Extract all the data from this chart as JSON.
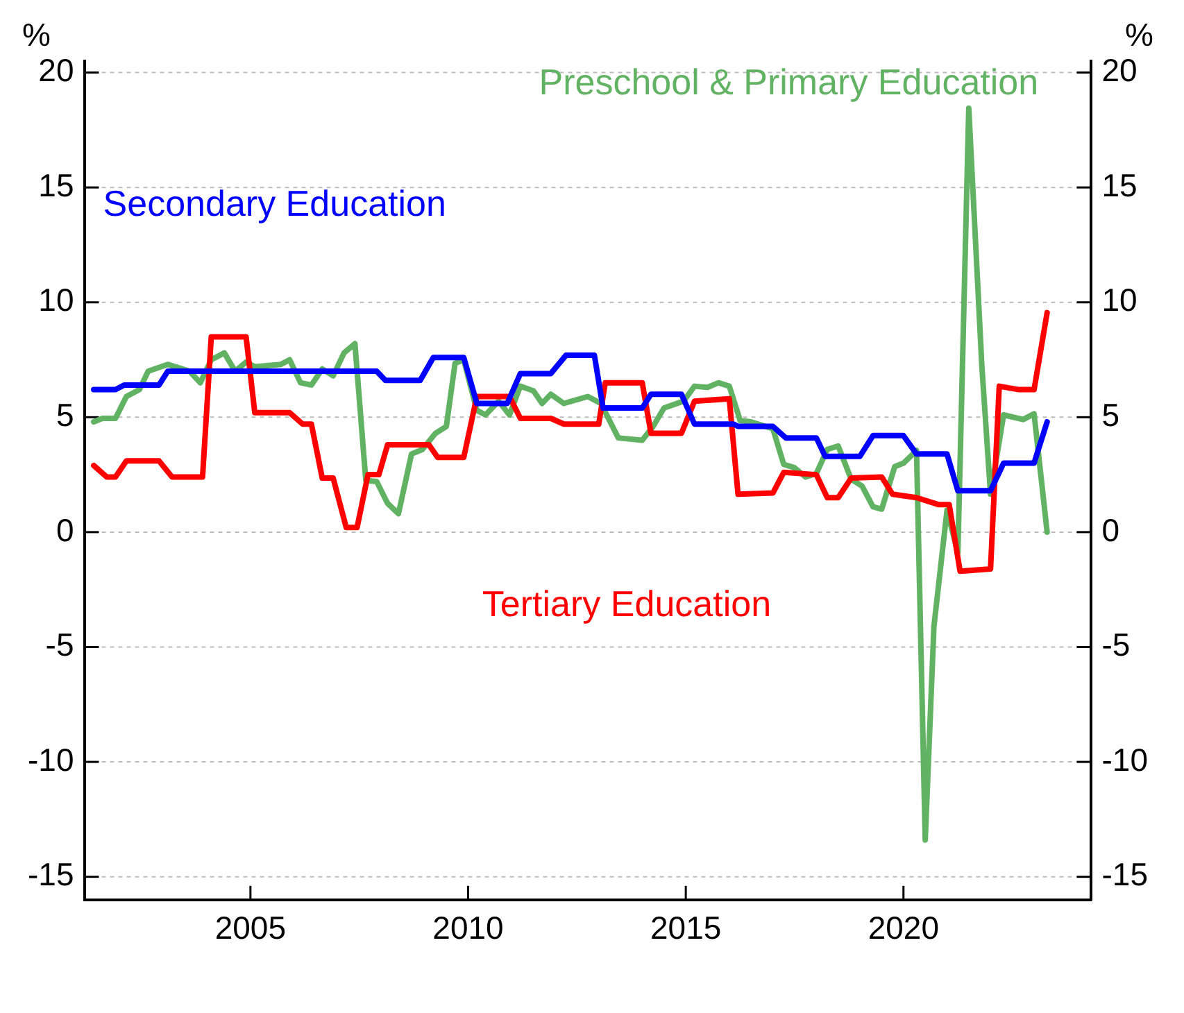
{
  "chart_data": {
    "type": "line",
    "ylabel": "%",
    "y2label": "%",
    "xlim": [
      2001.2,
      2024.3
    ],
    "xticks": [
      2005,
      2010,
      2015,
      2020
    ],
    "ylim": [
      -16,
      20.5
    ],
    "yticks": [
      -15,
      -10,
      -5,
      0,
      5,
      10,
      15,
      20
    ],
    "y2lim": [
      -16,
      20.5
    ],
    "y2ticks": [
      -15,
      -10,
      -5,
      0,
      5,
      10,
      15,
      20
    ],
    "grid": "y",
    "legend": false,
    "line_style": "solid",
    "marker": "none",
    "series": [
      {
        "name": "Secondary Education",
        "color": "#0000ff",
        "x": [
          2001.4,
          2001.9,
          2002.1,
          2002.9,
          2003.1,
          2007.9,
          2008.1,
          2008.9,
          2009.2,
          2009.9,
          2010.2,
          2010.9,
          2011.2,
          2011.9,
          2012.25,
          2012.9,
          2013.1,
          2014.0,
          2014.2,
          2014.9,
          2015.2,
          2016.1,
          2016.2,
          2017.0,
          2017.3,
          2018.0,
          2018.2,
          2019.0,
          2019.3,
          2020.0,
          2020.3,
          2021.0,
          2021.25,
          2022.0,
          2022.3,
          2023.0,
          2023.3
        ],
        "values": [
          6.2,
          6.2,
          6.4,
          6.4,
          7.0,
          7.0,
          6.6,
          6.6,
          7.6,
          7.6,
          5.6,
          5.6,
          6.9,
          6.9,
          7.7,
          7.7,
          5.4,
          5.4,
          6.0,
          6.0,
          4.7,
          4.7,
          4.6,
          4.6,
          4.1,
          4.1,
          3.3,
          3.3,
          4.2,
          4.2,
          3.4,
          3.4,
          1.8,
          1.8,
          3.0,
          3.0,
          4.8
        ]
      },
      {
        "name": "Tertiary Education",
        "color": "#ff0000",
        "x": [
          2001.4,
          2001.7,
          2001.9,
          2002.15,
          2002.9,
          2003.2,
          2003.9,
          2004.1,
          2004.9,
          2005.1,
          2005.9,
          2006.2,
          2006.4,
          2006.65,
          2006.9,
          2007.2,
          2007.45,
          2007.7,
          2007.95,
          2008.15,
          2009.1,
          2009.3,
          2009.9,
          2010.2,
          2010.95,
          2011.2,
          2011.9,
          2012.2,
          2013.0,
          2013.15,
          2014.0,
          2014.2,
          2014.9,
          2015.2,
          2016.0,
          2016.2,
          2017.0,
          2017.25,
          2018.0,
          2018.25,
          2018.5,
          2018.8,
          2019.5,
          2019.75,
          2020.3,
          2020.8,
          2021.05,
          2021.3,
          2022.0,
          2022.2,
          2022.65,
          2023.0,
          2023.3
        ],
        "values": [
          2.9,
          2.4,
          2.4,
          3.1,
          3.1,
          2.4,
          2.4,
          8.5,
          8.5,
          5.2,
          5.2,
          4.7,
          4.7,
          2.35,
          2.35,
          0.2,
          0.2,
          2.5,
          2.5,
          3.8,
          3.8,
          3.25,
          3.25,
          5.9,
          5.9,
          4.95,
          4.95,
          4.7,
          4.7,
          6.5,
          6.5,
          4.3,
          4.3,
          5.7,
          5.8,
          1.65,
          1.7,
          2.6,
          2.5,
          1.5,
          1.5,
          2.35,
          2.4,
          1.65,
          1.5,
          1.2,
          1.2,
          -1.7,
          -1.6,
          6.35,
          6.2,
          6.2,
          9.55
        ]
      },
      {
        "name": "Preschool & Primary Education",
        "color": "#62b263",
        "x": [
          2001.4,
          2001.6,
          2001.9,
          2002.15,
          2002.45,
          2002.65,
          2003.1,
          2003.6,
          2003.85,
          2004.1,
          2004.4,
          2004.65,
          2004.9,
          2005.1,
          2005.7,
          2005.9,
          2006.15,
          2006.4,
          2006.65,
          2006.9,
          2007.15,
          2007.4,
          2007.65,
          2007.9,
          2008.15,
          2008.4,
          2008.7,
          2008.95,
          2009.25,
          2009.5,
          2009.7,
          2009.9,
          2010.2,
          2010.4,
          2010.7,
          2010.95,
          2011.2,
          2011.5,
          2011.7,
          2011.9,
          2012.2,
          2012.75,
          2013.05,
          2013.45,
          2014.0,
          2014.25,
          2014.5,
          2014.95,
          2015.2,
          2015.5,
          2015.75,
          2016.0,
          2016.25,
          2016.5,
          2017.0,
          2017.25,
          2017.5,
          2017.75,
          2018.0,
          2018.25,
          2018.5,
          2018.8,
          2019.05,
          2019.3,
          2019.5,
          2019.8,
          2020.0,
          2020.3,
          2020.5,
          2020.7,
          2021.0,
          2021.25,
          2021.5,
          2021.8,
          2022.0,
          2022.3,
          2022.75,
          2023.0,
          2023.3
        ],
        "values": [
          4.8,
          4.95,
          4.95,
          5.9,
          6.2,
          7.0,
          7.3,
          7.0,
          6.5,
          7.5,
          7.8,
          7.0,
          7.4,
          7.2,
          7.3,
          7.5,
          6.5,
          6.4,
          7.1,
          6.8,
          7.8,
          8.2,
          2.25,
          2.2,
          1.25,
          0.8,
          3.4,
          3.6,
          4.3,
          4.6,
          7.35,
          7.5,
          5.3,
          5.1,
          5.7,
          5.1,
          6.35,
          6.15,
          5.6,
          6.0,
          5.6,
          5.9,
          5.6,
          4.1,
          4.0,
          4.6,
          5.4,
          5.7,
          6.35,
          6.3,
          6.5,
          6.35,
          4.85,
          4.8,
          4.5,
          2.95,
          2.8,
          2.4,
          2.55,
          3.6,
          3.75,
          2.3,
          2.0,
          1.1,
          1.0,
          2.85,
          3.0,
          3.55,
          -13.4,
          -4.1,
          0.95,
          -0.9,
          18.45,
          7.25,
          1.65,
          5.1,
          4.9,
          5.15,
          0.0
        ]
      }
    ]
  }
}
